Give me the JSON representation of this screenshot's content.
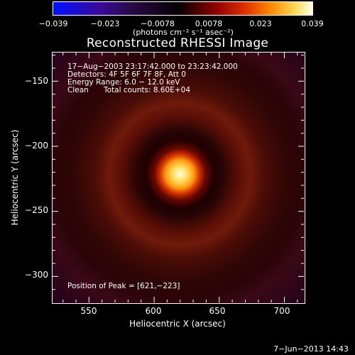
{
  "chart_data": {
    "type": "heatmap",
    "title": "Reconstructed RHESSI Image",
    "xlabel": "Heliocentric X (arcsec)",
    "ylabel": "Heliocentric Y (arcsec)",
    "xlim": [
      522,
      715
    ],
    "ylim": [
      -320,
      -128
    ],
    "x_ticks": [
      "550",
      "600",
      "650",
      "700"
    ],
    "x_tick_values": [
      550,
      600,
      650,
      700
    ],
    "y_ticks": [
      "−150",
      "−200",
      "−250",
      "−300"
    ],
    "y_tick_values": [
      -150,
      -200,
      -250,
      -300
    ],
    "colorbar": {
      "ticks": [
        "−0.039",
        "−0.023",
        "−0.0078",
        "0.0078",
        "0.023",
        "0.039"
      ],
      "tick_values": [
        -0.039,
        -0.023,
        -0.0078,
        0.0078,
        0.023,
        0.039
      ],
      "range": [
        -0.039,
        0.039
      ],
      "unit": "(photons cm⁻² s⁻¹ asec⁻²)"
    },
    "annotations": [
      "17−Aug−2003 23:17:42.000 to 23:23:42.000",
      "Detectors: 4F 5F 6F 7F 8F, Att 0",
      "Energy Range: 6.0 − 12.0 keV",
      "Clean",
      "Total counts: 8.60E+04",
      "Position of Peak = [621,−223]"
    ],
    "peak": {
      "x": 621,
      "y": -223
    }
  },
  "footer": "7−Jun−2013 14:43"
}
